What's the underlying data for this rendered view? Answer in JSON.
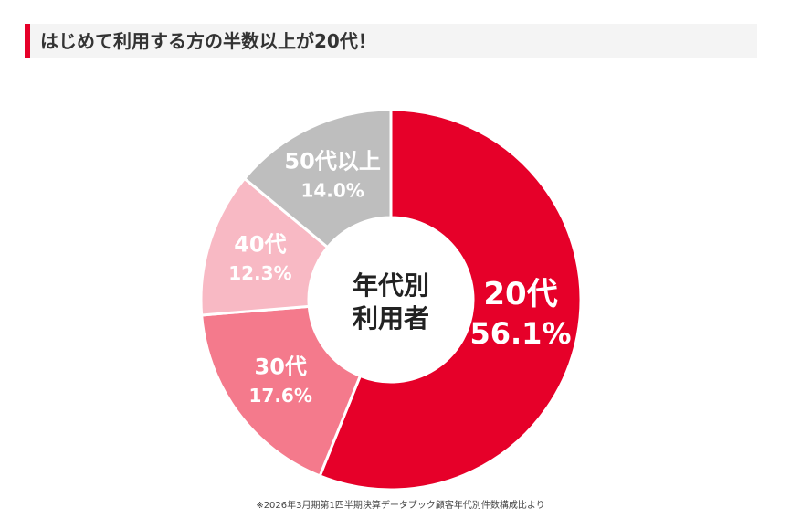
{
  "heading": {
    "title": "はじめて利用する方の半数以上が20代！",
    "accent_color": "#e60029"
  },
  "chart_data": {
    "type": "pie",
    "center_label_lines": [
      "年代別",
      "利用者"
    ],
    "slices": [
      {
        "name": "20代",
        "value": 56.1,
        "value_label": "56.1%",
        "color": "#e60029"
      },
      {
        "name": "30代",
        "value": 17.6,
        "value_label": "17.6%",
        "color": "#f47a8c"
      },
      {
        "name": "40代",
        "value": 12.3,
        "value_label": "12.3%",
        "color": "#f8b9c4"
      },
      {
        "name": "50代以上",
        "value": 14.0,
        "value_label": "14.0%",
        "color": "#bebebe"
      }
    ]
  },
  "footnote": "※2026年3月期第1四半期決算データブック顧客年代別件数構成比より"
}
